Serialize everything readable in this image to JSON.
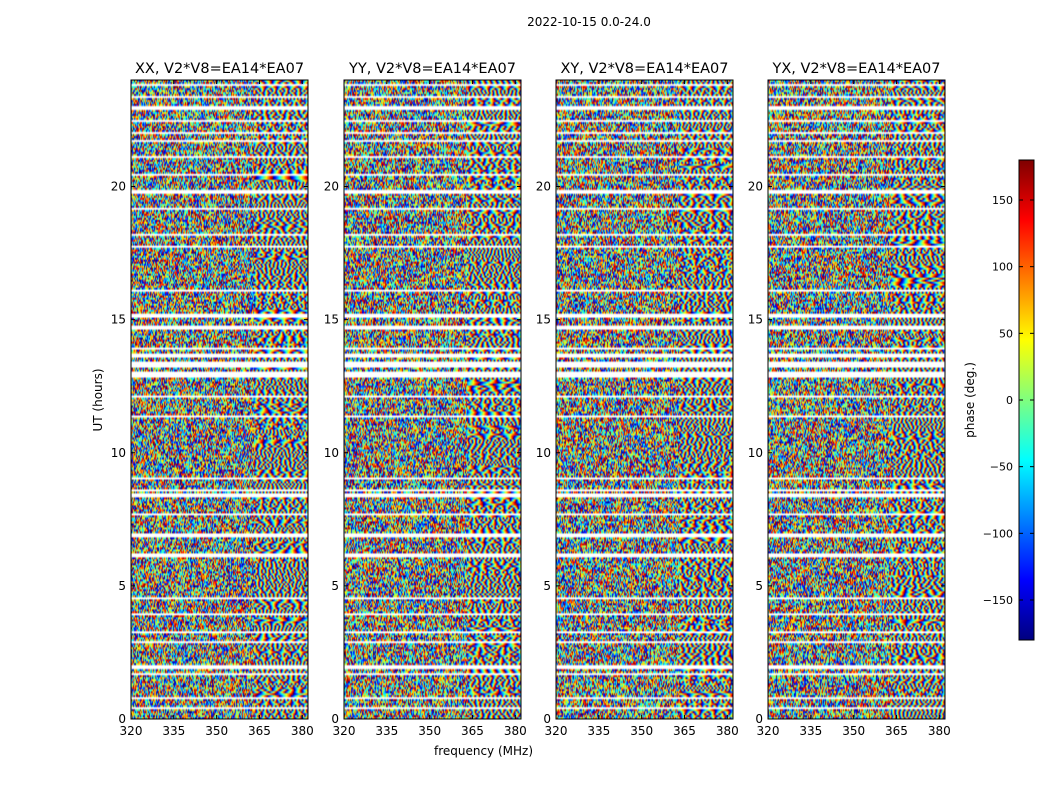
{
  "figure": {
    "suptitle": "2022-10-15 0.0-24.0"
  },
  "chart_data": {
    "type": "heatmap",
    "description_of_values": "phase in degrees versus frequency (MHz) and UT (hours)",
    "xlabel": "frequency (MHz)",
    "ylabel": "UT (hours)",
    "xlim": [
      320,
      382
    ],
    "ylim": [
      0,
      24
    ],
    "xticks": [
      320,
      335,
      350,
      365,
      380
    ],
    "yticks": [
      0,
      5,
      10,
      15,
      20
    ],
    "panels": [
      {
        "name": "XX",
        "title": "XX, V2*V8=EA14*EA07"
      },
      {
        "name": "YY",
        "title": "YY, V2*V8=EA14*EA07"
      },
      {
        "name": "XY",
        "title": "XY, V2*V8=EA14*EA07"
      },
      {
        "name": "YX",
        "title": "YX, V2*V8=EA14*EA07"
      }
    ],
    "flagged_gaps_hours": [
      [
        0.35,
        0.45
      ],
      [
        0.75,
        0.85
      ],
      [
        1.65,
        1.75
      ],
      [
        1.9,
        2.0
      ],
      [
        2.15,
        2.2
      ],
      [
        2.85,
        2.95
      ],
      [
        3.25,
        3.3
      ],
      [
        3.9,
        4.0
      ],
      [
        4.5,
        4.6
      ],
      [
        5.3,
        5.35
      ],
      [
        6.1,
        6.2
      ],
      [
        6.85,
        6.95
      ],
      [
        7.25,
        7.3
      ],
      [
        7.65,
        7.75
      ],
      [
        8.35,
        8.5
      ],
      [
        8.55,
        8.65
      ],
      [
        9.0,
        9.05
      ],
      [
        11.35,
        11.4
      ],
      [
        12.1,
        12.15
      ],
      [
        12.8,
        12.95
      ],
      [
        13.0,
        13.05
      ],
      [
        13.2,
        13.45
      ],
      [
        13.6,
        13.7
      ],
      [
        13.9,
        13.95
      ],
      [
        14.65,
        14.75
      ],
      [
        15.1,
        15.2
      ],
      [
        16.05,
        16.15
      ],
      [
        16.7,
        16.75
      ],
      [
        17.7,
        17.8
      ],
      [
        18.15,
        18.25
      ],
      [
        18.8,
        18.85
      ],
      [
        19.1,
        19.2
      ],
      [
        19.75,
        19.85
      ],
      [
        20.4,
        20.45
      ],
      [
        21.05,
        21.15
      ],
      [
        21.7,
        21.75
      ],
      [
        22.0,
        22.05
      ],
      [
        22.4,
        22.5
      ],
      [
        22.9,
        23.0
      ],
      [
        23.35,
        23.4
      ],
      [
        23.75,
        23.85
      ]
    ],
    "smooth_fringe_start_mhz": 363,
    "colorbar": {
      "label": "phase (deg.)",
      "range": [
        -180,
        180
      ],
      "ticks": [
        150,
        100,
        50,
        0,
        -50,
        -100,
        -150
      ],
      "tick_labels": [
        "150",
        "100",
        "50",
        "0",
        "−50",
        "−100",
        "−150"
      ],
      "colormap": "jet",
      "colormap_stops": [
        "#00007f",
        "#0000ff",
        "#007fff",
        "#00ffff",
        "#7fff7f",
        "#ffff00",
        "#ff7f00",
        "#ff0000",
        "#7f0000"
      ]
    }
  }
}
